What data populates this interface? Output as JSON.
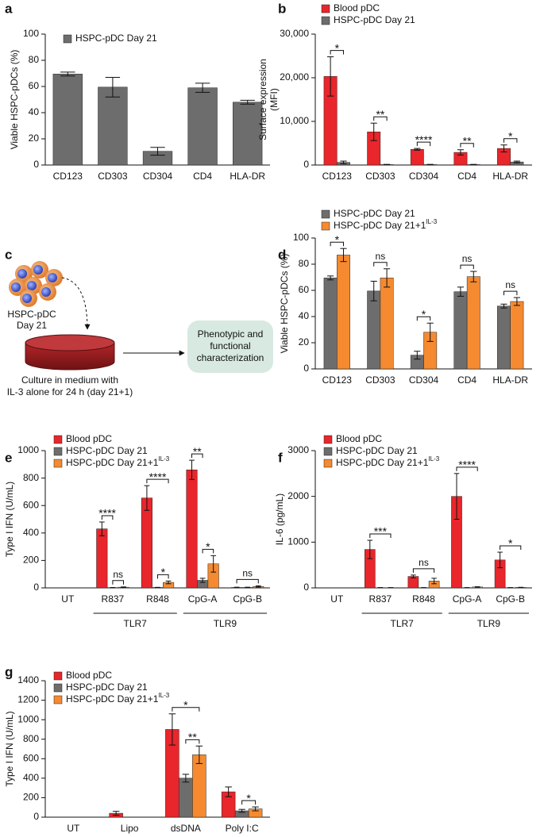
{
  "chart_data": [
    {
      "type": "bar",
      "panel": "a",
      "ylabel": [
        "Viable HSPC-pDCs (%)"
      ],
      "categories": [
        "CD123",
        "CD303",
        "CD304",
        "CD4",
        "HLA-DR"
      ],
      "series": [
        {
          "name": "HSPC-pDC Day 21",
          "color": "#6d6d6d",
          "values": [
            69.5,
            59.5,
            10.5,
            59,
            48
          ],
          "errors": [
            1.5,
            7.5,
            3,
            3.5,
            1.5
          ]
        }
      ],
      "ylim": [
        0,
        100
      ],
      "yticks": [
        0,
        20,
        40,
        60,
        80,
        100
      ],
      "annotations": []
    },
    {
      "type": "bar",
      "panel": "b",
      "ylabel": [
        "Surface expression",
        "(MFI)"
      ],
      "categories": [
        "CD123",
        "CD303",
        "CD304",
        "CD4",
        "HLA-DR"
      ],
      "series": [
        {
          "name": "Blood pDC",
          "color": "#e8262b",
          "values": [
            20300,
            7600,
            3600,
            2900,
            3800
          ],
          "errors": [
            4500,
            2000,
            200,
            600,
            800
          ]
        },
        {
          "name": "HSPC-pDC Day 21",
          "color": "#6d6d6d",
          "values": [
            600,
            100,
            100,
            100,
            700
          ],
          "errors": [
            300,
            50,
            50,
            50,
            200
          ]
        }
      ],
      "ylim": [
        0,
        30000
      ],
      "yticks": [
        0,
        {
          "value": 10000,
          "label": "10,000"
        },
        {
          "value": 20000,
          "label": "20,000"
        },
        {
          "value": 30000,
          "label": "30,000"
        }
      ],
      "annotations": [
        {
          "text": "*",
          "category": 0,
          "from": 0,
          "to": 1
        },
        {
          "text": "**",
          "category": 1,
          "from": 0,
          "to": 1
        },
        {
          "text": "****",
          "category": 2,
          "from": 0,
          "to": 1
        },
        {
          "text": "**",
          "category": 3,
          "from": 0,
          "to": 1
        },
        {
          "text": "*",
          "category": 4,
          "from": 0,
          "to": 1
        }
      ]
    },
    {
      "type": "bar",
      "panel": "d",
      "ylabel": [
        "Viable HSPC-pDCs (%)"
      ],
      "categories": [
        "CD123",
        "CD303",
        "CD304",
        "CD4",
        "HLA-DR"
      ],
      "series": [
        {
          "name": "HSPC-pDC Day 21",
          "color": "#6d6d6d",
          "values": [
            69.5,
            59.5,
            10.5,
            59,
            48
          ],
          "errors": [
            1.5,
            7.5,
            3,
            3.5,
            1.5
          ]
        },
        {
          "name": "HSPC-pDC Day 21+1",
          "name_sup": "IL-3",
          "color": "#f58a31",
          "values": [
            87,
            69.5,
            28,
            70.5,
            51.5
          ],
          "errors": [
            5,
            7,
            7,
            4,
            3
          ]
        }
      ],
      "ylim": [
        0,
        100
      ],
      "yticks": [
        0,
        20,
        40,
        60,
        80,
        100
      ],
      "annotations": [
        {
          "text": "*",
          "category": 0,
          "from": 0,
          "to": 1
        },
        {
          "text": "ns",
          "category": 1,
          "from": 0,
          "to": 1
        },
        {
          "text": "*",
          "category": 2,
          "from": 0,
          "to": 1
        },
        {
          "text": "ns",
          "category": 3,
          "from": 0,
          "to": 1
        },
        {
          "text": "ns",
          "category": 4,
          "from": 0,
          "to": 1
        }
      ]
    },
    {
      "type": "bar",
      "panel": "e",
      "ylabel": [
        "Type I IFN (U/mL)"
      ],
      "categories": [
        "UT",
        "R837",
        "R848",
        "CpG-A",
        "CpG-B"
      ],
      "groups": [
        {
          "label": "TLR7",
          "from": 1,
          "to": 2
        },
        {
          "label": "TLR9",
          "from": 3,
          "to": 4
        }
      ],
      "series": [
        {
          "name": "Blood pDC",
          "color": "#e8262b",
          "values": [
            0,
            430,
            655,
            860,
            3
          ],
          "errors": [
            0,
            50,
            90,
            70,
            2
          ]
        },
        {
          "name": "HSPC-pDC Day 21",
          "color": "#6d6d6d",
          "values": [
            0,
            2,
            3,
            55,
            3
          ],
          "errors": [
            0,
            1,
            1,
            15,
            2
          ]
        },
        {
          "name": "HSPC-pDC Day 21+1",
          "name_sup": "IL-3",
          "color": "#f58a31",
          "values": [
            0,
            5,
            40,
            175,
            10
          ],
          "errors": [
            0,
            2,
            10,
            60,
            5
          ]
        }
      ],
      "ylim": [
        0,
        1000
      ],
      "yticks": [
        0,
        200,
        400,
        600,
        800,
        1000
      ],
      "annotations": [
        {
          "text": "ns",
          "category": 1,
          "from": 1,
          "to": 2
        },
        {
          "text": "****",
          "category": 1,
          "from": 0,
          "to": 1
        },
        {
          "text": "*",
          "category": 2,
          "from": 1,
          "to": 2
        },
        {
          "text": "****",
          "category": 2,
          "from": 0,
          "to": 2
        },
        {
          "text": "*",
          "category": 3,
          "from": 1,
          "to": 2
        },
        {
          "text": "**",
          "category": 3,
          "from": 0,
          "to": 1
        },
        {
          "text": "ns",
          "category": 4,
          "from": 0,
          "to": 2
        }
      ]
    },
    {
      "type": "bar",
      "panel": "f",
      "ylabel": [
        "IL-6 (pg/mL)"
      ],
      "categories": [
        "UT",
        "R837",
        "R848",
        "CpG-A",
        "CpG-B"
      ],
      "groups": [
        {
          "label": "TLR7",
          "from": 1,
          "to": 2
        },
        {
          "label": "TLR9",
          "from": 3,
          "to": 4
        }
      ],
      "series": [
        {
          "name": "Blood pDC",
          "color": "#e8262b",
          "values": [
            0,
            840,
            250,
            2000,
            610
          ],
          "errors": [
            0,
            200,
            30,
            500,
            170
          ]
        },
        {
          "name": "HSPC-pDC Day 21",
          "color": "#6d6d6d",
          "values": [
            0,
            5,
            5,
            5,
            5
          ],
          "errors": [
            0,
            2,
            2,
            2,
            2
          ]
        },
        {
          "name": "HSPC-pDC Day 21+1",
          "name_sup": "IL-3",
          "color": "#f58a31",
          "values": [
            0,
            5,
            150,
            20,
            10
          ],
          "errors": [
            0,
            2,
            60,
            5,
            3
          ]
        }
      ],
      "ylim": [
        0,
        3000
      ],
      "yticks": [
        0,
        1000,
        2000,
        3000
      ],
      "annotations": [
        {
          "text": "***",
          "category": 1,
          "from": 0,
          "to": 2
        },
        {
          "text": "ns",
          "category": 2,
          "from": 0,
          "to": 2
        },
        {
          "text": "****",
          "category": 3,
          "from": 0,
          "to": 2
        },
        {
          "text": "*",
          "category": 4,
          "from": 0,
          "to": 2
        }
      ]
    },
    {
      "type": "bar",
      "panel": "g",
      "ylabel": [
        "Type I IFN (U/mL)"
      ],
      "categories": [
        "UT",
        "Lipo",
        "dsDNA",
        "Poly I:C"
      ],
      "series": [
        {
          "name": "Blood pDC",
          "color": "#e8262b",
          "values": [
            0,
            40,
            900,
            260
          ],
          "errors": [
            0,
            20,
            160,
            50
          ]
        },
        {
          "name": "HSPC-pDC Day 21",
          "color": "#6d6d6d",
          "values": [
            0,
            0,
            400,
            65
          ],
          "errors": [
            0,
            0,
            40,
            15
          ]
        },
        {
          "name": "HSPC-pDC Day 21+1",
          "name_sup": "IL-3",
          "color": "#f58a31",
          "values": [
            0,
            0,
            640,
            85
          ],
          "errors": [
            0,
            0,
            90,
            20
          ]
        }
      ],
      "ylim": [
        0,
        1400
      ],
      "yticks": [
        0,
        200,
        400,
        600,
        800,
        1000,
        1200,
        1400
      ],
      "annotations": [
        {
          "text": "**",
          "category": 2,
          "from": 1,
          "to": 2
        },
        {
          "text": "*",
          "category": 2,
          "from": 0,
          "to": 2
        },
        {
          "text": "*",
          "category": 3,
          "from": 1,
          "to": 2
        }
      ]
    }
  ],
  "diagram": {
    "panel": "c",
    "cell_label": [
      "HSPC-pDC",
      "Day 21"
    ],
    "dish_label": [
      "Culture in medium with",
      "IL-3 alone for 24 h (day 21+1)"
    ],
    "box_label": [
      "Phenotypic and",
      "functional",
      "characterization"
    ]
  }
}
